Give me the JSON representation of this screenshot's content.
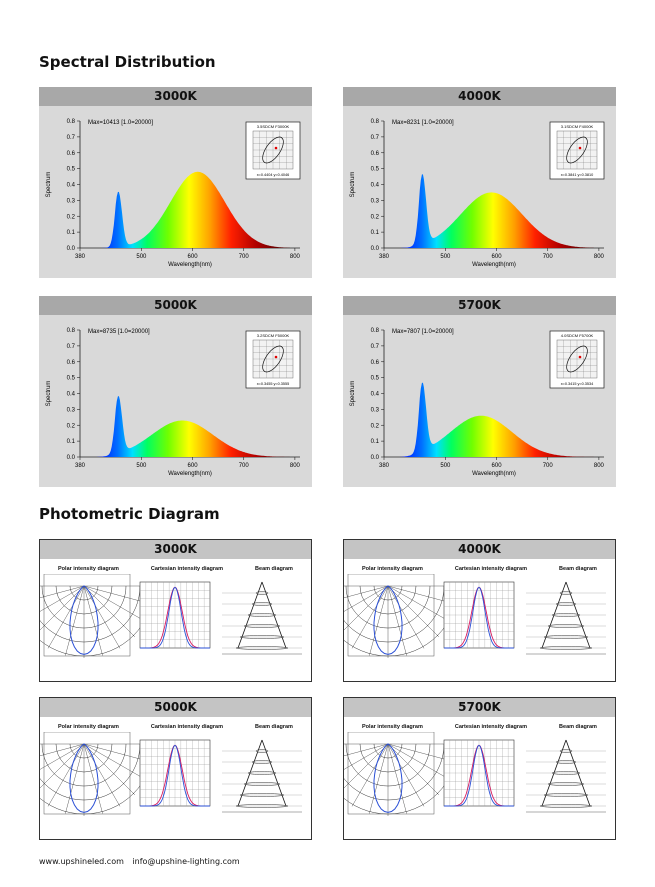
{
  "sections": {
    "spectral_title": "Spectral Distribution",
    "photometric_title": "Photometric Diagram"
  },
  "spectral": [
    {
      "cct": "3000K",
      "max_label": "Max=10413  [1.0=20000]",
      "cie_label": "3.5SDCM  F3000K",
      "xy_label": "x=0.4404  y=0.4046",
      "chart": {
        "peak_blue": 0.35,
        "peak_main": 0.48,
        "main_center": 610,
        "main_sigma": 75
      }
    },
    {
      "cct": "4000K",
      "max_label": "Max=8231  [1.0=20000]",
      "cie_label": "3.1SDCM  F4000K",
      "xy_label": "x=0.3841  y=0.3810",
      "chart": {
        "peak_blue": 0.44,
        "peak_main": 0.35,
        "main_center": 590,
        "main_sigma": 85
      }
    },
    {
      "cct": "5000K",
      "max_label": "Max=8735  [1.0=20000]",
      "cie_label": "3.2SDCM  F5000K",
      "xy_label": "x=0.3455  y=0.3555",
      "chart": {
        "peak_blue": 0.36,
        "peak_main": 0.23,
        "main_center": 580,
        "main_sigma": 85
      }
    },
    {
      "cct": "5700K",
      "max_label": "Max=7807  [1.0=20000]",
      "cie_label": "4.0SDCM  F5700K",
      "xy_label": "x=0.3415  y=0.3534",
      "chart": {
        "peak_blue": 0.43,
        "peak_main": 0.26,
        "main_center": 570,
        "main_sigma": 85
      }
    }
  ],
  "spectral_axes": {
    "ylabel": "Spectrum",
    "xlabel": "Wavelength(nm)",
    "xticks": [
      "380",
      "500",
      "600",
      "700",
      "800"
    ],
    "yticks": [
      "0.8",
      "0.7",
      "0.6",
      "0.5",
      "0.4",
      "0.3",
      "0.2",
      "0.1",
      "0.0"
    ]
  },
  "chart_data": [
    {
      "type": "area",
      "title": "3000K",
      "xlabel": "Wavelength(nm)",
      "ylabel": "Spectrum",
      "xlim": [
        380,
        810
      ],
      "ylim": [
        0,
        0.8
      ],
      "x": [
        380,
        420,
        440,
        460,
        480,
        500,
        550,
        600,
        650,
        700,
        750,
        780
      ],
      "values": [
        0.0,
        0.03,
        0.15,
        0.35,
        0.12,
        0.14,
        0.3,
        0.47,
        0.4,
        0.2,
        0.05,
        0.01
      ]
    },
    {
      "type": "area",
      "title": "4000K",
      "xlabel": "Wavelength(nm)",
      "ylabel": "Spectrum",
      "xlim": [
        380,
        810
      ],
      "ylim": [
        0,
        0.8
      ],
      "x": [
        380,
        420,
        440,
        460,
        480,
        500,
        550,
        600,
        650,
        700,
        750,
        780
      ],
      "values": [
        0.0,
        0.04,
        0.2,
        0.44,
        0.15,
        0.15,
        0.3,
        0.35,
        0.28,
        0.13,
        0.03,
        0.01
      ]
    },
    {
      "type": "area",
      "title": "5000K",
      "xlabel": "Wavelength(nm)",
      "ylabel": "Spectrum",
      "xlim": [
        380,
        810
      ],
      "ylim": [
        0,
        0.8
      ],
      "x": [
        380,
        420,
        440,
        460,
        480,
        500,
        550,
        600,
        650,
        700,
        750,
        780
      ],
      "values": [
        0.0,
        0.04,
        0.18,
        0.36,
        0.12,
        0.12,
        0.2,
        0.22,
        0.16,
        0.07,
        0.02,
        0.0
      ]
    },
    {
      "type": "area",
      "title": "5700K",
      "xlabel": "Wavelength(nm)",
      "ylabel": "Spectrum",
      "xlim": [
        380,
        810
      ],
      "ylim": [
        0,
        0.8
      ],
      "x": [
        380,
        420,
        440,
        460,
        480,
        500,
        550,
        600,
        650,
        700,
        750,
        780
      ],
      "values": [
        0.0,
        0.05,
        0.22,
        0.43,
        0.14,
        0.14,
        0.24,
        0.24,
        0.17,
        0.07,
        0.02,
        0.0
      ]
    }
  ],
  "photometric": [
    {
      "cct": "3000K"
    },
    {
      "cct": "4000K"
    },
    {
      "cct": "5000K"
    },
    {
      "cct": "5700K"
    }
  ],
  "photo_labels": {
    "polar": "Polar intensity diagram",
    "cartesian": "Cartesian intensity diagram",
    "beam": "Beam diagram"
  },
  "footer": {
    "website": "www.upshineled.com",
    "email": "info@upshine-lighting.com"
  }
}
